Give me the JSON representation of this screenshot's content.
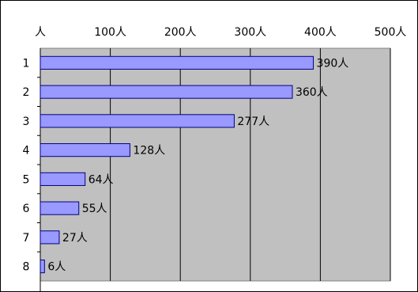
{
  "chart_data": {
    "type": "bar",
    "orientation": "horizontal",
    "categories": [
      "1",
      "2",
      "3",
      "4",
      "5",
      "6",
      "7",
      "8"
    ],
    "values": [
      390,
      360,
      277,
      128,
      64,
      55,
      27,
      6
    ],
    "data_labels": [
      "390人",
      "360人",
      "277人",
      "128人",
      "64人",
      "55人",
      "27人",
      "6人"
    ],
    "x_tick_labels": [
      "人",
      "100人",
      "200人",
      "300人",
      "400人",
      "500人"
    ],
    "x_ticks": [
      0,
      100,
      200,
      300,
      400,
      500
    ],
    "xlim": [
      0,
      500
    ],
    "xaxis_position": "top",
    "grid": true,
    "colors": {
      "bar_fill": "#9999ff",
      "bar_stroke": "#000080",
      "plot_background": "#c0c0c0",
      "grid": "#000000"
    }
  }
}
